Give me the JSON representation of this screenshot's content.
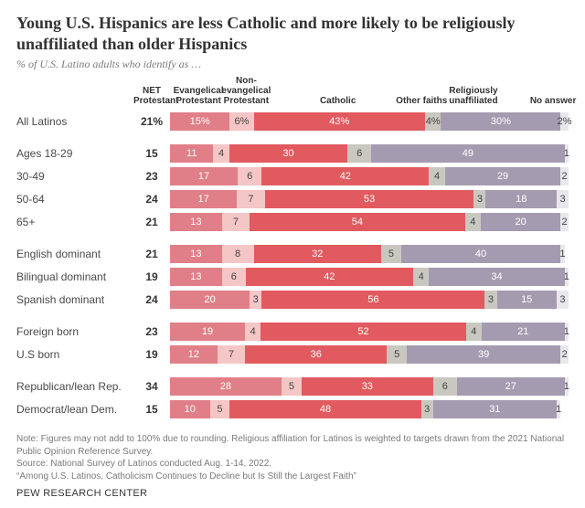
{
  "title": "Young U.S. Hispanics are less Catholic and more likely to be religiously unaffiliated than older Hispanics",
  "subtitle": "% of U.S. Latino adults who identify as …",
  "columns": {
    "net": "NET Protestant",
    "evang": "Evangelical Protestant",
    "nonevang": "Non-evangelical Protestant",
    "catholic": "Catholic",
    "other": "Other faiths",
    "unaff": "Religiously unaffiliated",
    "noanswer": "No answer"
  },
  "colors": {
    "evang": "#e07f87",
    "nonevang": "#f4c6c5",
    "catholic": "#e15a5f",
    "other": "#c8c8c0",
    "unaff": "#a59bb0",
    "noanswer": "#e9e7eb",
    "text_on_light": "#444444",
    "text_on_dark": "#ffffff"
  },
  "header_positions_pct": {
    "evang": 3,
    "nonevang": 15,
    "catholic": 38,
    "other": 59,
    "unaff": 72,
    "noanswer": 92
  },
  "groups": [
    [
      {
        "label": "All Latinos",
        "net": "21",
        "v": {
          "evang": 15,
          "nonevang": 6,
          "catholic": 43,
          "other": 4,
          "unaff": 30,
          "noanswer": 2
        },
        "first": true
      }
    ],
    [
      {
        "label": "Ages 18-29",
        "net": "15",
        "v": {
          "evang": 11,
          "nonevang": 4,
          "catholic": 30,
          "other": 6,
          "unaff": 49,
          "noanswer": 1
        }
      },
      {
        "label": "30-49",
        "net": "23",
        "v": {
          "evang": 17,
          "nonevang": 6,
          "catholic": 42,
          "other": 4,
          "unaff": 29,
          "noanswer": 2
        }
      },
      {
        "label": "50-64",
        "net": "24",
        "v": {
          "evang": 17,
          "nonevang": 7,
          "catholic": 53,
          "other": 3,
          "unaff": 18,
          "noanswer": 3
        }
      },
      {
        "label": "65+",
        "net": "21",
        "v": {
          "evang": 13,
          "nonevang": 7,
          "catholic": 54,
          "other": 4,
          "unaff": 20,
          "noanswer": 2
        }
      }
    ],
    [
      {
        "label": "English dominant",
        "net": "21",
        "v": {
          "evang": 13,
          "nonevang": 8,
          "catholic": 32,
          "other": 5,
          "unaff": 40,
          "noanswer": 1
        }
      },
      {
        "label": "Bilingual dominant",
        "net": "19",
        "v": {
          "evang": 13,
          "nonevang": 6,
          "catholic": 42,
          "other": 4,
          "unaff": 34,
          "noanswer": 1
        }
      },
      {
        "label": "Spanish dominant",
        "net": "24",
        "v": {
          "evang": 20,
          "nonevang": 3,
          "catholic": 56,
          "other": 3,
          "unaff": 15,
          "noanswer": 3
        }
      }
    ],
    [
      {
        "label": "Foreign born",
        "net": "23",
        "v": {
          "evang": 19,
          "nonevang": 4,
          "catholic": 52,
          "other": 4,
          "unaff": 21,
          "noanswer": 1
        }
      },
      {
        "label": "U.S born",
        "net": "19",
        "v": {
          "evang": 12,
          "nonevang": 7,
          "catholic": 36,
          "other": 5,
          "unaff": 39,
          "noanswer": 2
        }
      }
    ],
    [
      {
        "label": "Republican/lean Rep.",
        "net": "34",
        "v": {
          "evang": 28,
          "nonevang": 5,
          "catholic": 33,
          "other": 6,
          "unaff": 27,
          "noanswer": 1
        }
      },
      {
        "label": "Democrat/lean Dem.",
        "net": "15",
        "v": {
          "evang": 10,
          "nonevang": 5,
          "catholic": 48,
          "other": 3,
          "unaff": 31,
          "noanswer": 1
        }
      }
    ]
  ],
  "note1": "Note: Figures may not add to 100% due to rounding. Religious affiliation for Latinos is weighted to targets drawn from the 2021 National Public Opinion Reference Survey.",
  "note2": "Source: National Survey of Latinos conducted Aug. 1-14, 2022.",
  "note3": "“Among U.S. Latinos, Catholicism Continues to Decline but Is Still the Largest Faith”",
  "footer": "PEW RESEARCH CENTER"
}
